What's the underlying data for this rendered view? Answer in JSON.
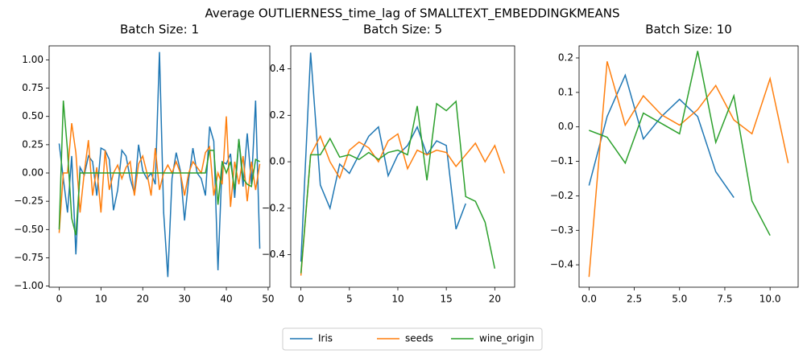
{
  "title": "Average OUTLIERNESS_time_lag of SMALLTEXT_EMBEDDINGKMEANS",
  "chart_data": [
    {
      "type": "line",
      "title": "Batch Size: 1",
      "xlim": [
        -2.4,
        50.4
      ],
      "xticks": [
        0,
        10,
        20,
        30,
        40,
        50
      ],
      "ylim": [
        -1.01,
        1.124
      ],
      "yticks": [
        {
          "value": -1,
          "label": "−1.00"
        },
        {
          "value": -0.75,
          "label": "−0.75"
        },
        {
          "value": -0.5,
          "label": "−0.50"
        },
        {
          "value": -0.25,
          "label": "−0.25"
        },
        {
          "value": 0,
          "label": "0.00"
        },
        {
          "value": 0.25,
          "label": "0.25"
        },
        {
          "value": 0.5,
          "label": "0.50"
        },
        {
          "value": 0.75,
          "label": "0.75"
        },
        {
          "value": 1,
          "label": "1.00"
        }
      ],
      "series": [
        {
          "name": "Iris",
          "color": "#1f77b4",
          "values": [
            0.26,
            -0.05,
            -0.35,
            0.15,
            -0.72,
            0.05,
            -0.02,
            0.15,
            0.1,
            -0.2,
            0.22,
            0.2,
            0.12,
            -0.33,
            -0.15,
            0.2,
            0.15,
            -0.05,
            -0.18,
            0.25,
            0.02,
            -0.05,
            0.0,
            -0.1,
            1.07,
            -0.35,
            -0.92,
            -0.05,
            0.18,
            0.02,
            -0.42,
            -0.05,
            0.22,
            0.0,
            -0.05,
            -0.2,
            0.41,
            0.28,
            -0.86,
            0.1,
            0.08,
            0.17,
            -0.22,
            0.3,
            -0.12,
            0.35,
            -0.1,
            0.64,
            -0.67
          ]
        },
        {
          "name": "seeds",
          "color": "#ff7f0e",
          "values": [
            -0.53,
            0.0,
            0.0,
            0.44,
            0.18,
            -0.35,
            0.0,
            0.29,
            -0.2,
            0.05,
            -0.35,
            0.2,
            -0.15,
            0.0,
            0.07,
            -0.05,
            0.05,
            0.1,
            -0.2,
            0.08,
            0.15,
            0.0,
            -0.2,
            0.22,
            -0.15,
            0.0,
            0.07,
            0.0,
            0.1,
            0.0,
            -0.2,
            0.0,
            0.1,
            0.05,
            0.0,
            0.18,
            0.23,
            -0.2,
            0.0,
            -0.1,
            0.5,
            -0.3,
            0.1,
            -0.1,
            0.15,
            -0.25,
            0.1,
            -0.15,
            0.08
          ]
        },
        {
          "name": "wine_origin",
          "color": "#2ca02c",
          "values": [
            -0.5,
            0.64,
            0.2,
            -0.4,
            -0.55,
            0,
            0,
            0,
            0,
            0,
            0,
            0,
            0,
            0,
            0,
            0,
            0,
            0,
            0,
            0,
            0,
            0,
            0,
            0,
            0,
            0,
            0,
            0,
            0,
            0,
            0,
            0,
            0,
            0,
            0,
            0,
            0.2,
            0.2,
            -0.28,
            0.1,
            0.0,
            0.1,
            -0.15,
            0.3,
            -0.05,
            -0.1,
            -0.12,
            0.12,
            0.1
          ]
        }
      ]
    },
    {
      "type": "line",
      "title": "Batch Size: 5",
      "xlim": [
        -1.05,
        22.05
      ],
      "xticks": [
        0,
        5,
        10,
        15,
        20
      ],
      "ylim": [
        -0.54,
        0.499
      ],
      "yticks": [
        {
          "value": -0.4,
          "label": "−0.4"
        },
        {
          "value": -0.2,
          "label": "−0.2"
        },
        {
          "value": 0,
          "label": "0.0"
        },
        0.2,
        0.4
      ],
      "series": [
        {
          "name": "Iris",
          "color": "#1f77b4",
          "values": [
            -0.43,
            0.47,
            -0.1,
            -0.2,
            -0.01,
            -0.05,
            0.03,
            0.11,
            0.15,
            -0.06,
            0.03,
            0.07,
            0.15,
            0.03,
            0.09,
            0.07,
            -0.29,
            -0.18
          ]
        },
        {
          "name": "seeds",
          "color": "#ff7f0e",
          "values": [
            -0.49,
            0.03,
            0.11,
            0.0,
            -0.07,
            0.05,
            0.085,
            0.06,
            0.0,
            0.09,
            0.12,
            -0.03,
            0.05,
            0.03,
            0.05,
            0.04,
            -0.02,
            0.03,
            0.08,
            0.0,
            0.07,
            -0.05
          ]
        },
        {
          "name": "wine_origin",
          "color": "#2ca02c",
          "values": [
            -0.48,
            0.03,
            0.03,
            0.1,
            0.02,
            0.03,
            0.01,
            0.04,
            0.01,
            0.04,
            0.05,
            0.03,
            0.24,
            -0.08,
            0.25,
            0.22,
            0.26,
            -0.15,
            -0.17,
            -0.26,
            -0.46
          ]
        }
      ]
    },
    {
      "type": "line",
      "title": "Batch Size: 10",
      "xlim": [
        -0.55,
        11.55
      ],
      "xticks": [
        {
          "value": 0,
          "label": "0.0"
        },
        2.5,
        {
          "value": 5,
          "label": "5.0"
        },
        7.5,
        {
          "value": 10,
          "label": "10.0"
        }
      ],
      "ylim": [
        -0.465,
        0.235
      ],
      "yticks": [
        {
          "value": -0.4,
          "label": "−0.4"
        },
        {
          "value": -0.3,
          "label": "−0.3"
        },
        {
          "value": -0.2,
          "label": "−0.2"
        },
        {
          "value": -0.1,
          "label": "−0.1"
        },
        {
          "value": 0,
          "label": "0.0"
        },
        0.1,
        0.2
      ],
      "series": [
        {
          "name": "Iris",
          "color": "#1f77b4",
          "values": [
            -0.17,
            0.03,
            0.15,
            -0.035,
            0.03,
            0.08,
            0.03,
            -0.13,
            -0.205
          ]
        },
        {
          "name": "seeds",
          "color": "#ff7f0e",
          "values": [
            -0.435,
            0.19,
            0.005,
            0.09,
            0.035,
            0.005,
            0.05,
            0.12,
            0.02,
            -0.02,
            0.14,
            -0.105
          ]
        },
        {
          "name": "wine_origin",
          "color": "#2ca02c",
          "values": [
            -0.01,
            -0.03,
            -0.105,
            0.04,
            0.01,
            -0.02,
            0.22,
            -0.045,
            0.09,
            -0.215,
            -0.315
          ]
        }
      ]
    }
  ]
}
